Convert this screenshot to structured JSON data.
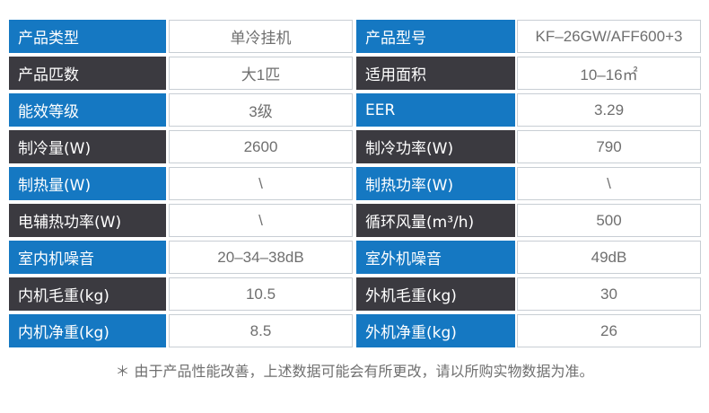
{
  "spec_table": {
    "rows": [
      {
        "label1": "产品类型",
        "value1": "单冷挂机",
        "label2": "产品型号",
        "value2": "KF–26GW/AFF600+3"
      },
      {
        "label1": "产品匹数",
        "value1": "大1匹",
        "label2": "适用面积",
        "value2": "10–16㎡"
      },
      {
        "label1": "能效等级",
        "value1": "3级",
        "label2": "EER",
        "value2": "3.29"
      },
      {
        "label1": "制冷量(W)",
        "value1": "2600",
        "label2": "制冷功率(W)",
        "value2": "790"
      },
      {
        "label1": "制热量(W)",
        "value1": "\\",
        "label2": "制热功率(W)",
        "value2": "\\"
      },
      {
        "label1": "电辅热功率(W)",
        "value1": "\\",
        "label2": "循环风量(m³/h)",
        "value2": "500"
      },
      {
        "label1": "室内机噪音",
        "value1": "20–34–38dB",
        "label2": "室外机噪音",
        "value2": "49dB"
      },
      {
        "label1": "内机毛重(kg)",
        "value1": "10.5",
        "label2": "外机毛重(kg)",
        "value2": "30"
      },
      {
        "label1": "内机净重(kg)",
        "value1": "8.5",
        "label2": "外机净重(kg)",
        "value2": "26"
      }
    ]
  },
  "footnote": "＊ 由于产品性能改善，上述数据可能会有所更改，请以所购实物数据为准。",
  "colors": {
    "label_blue": "#1578c2",
    "label_dark": "#3b3a40",
    "value_text": "#6f6f6f"
  }
}
